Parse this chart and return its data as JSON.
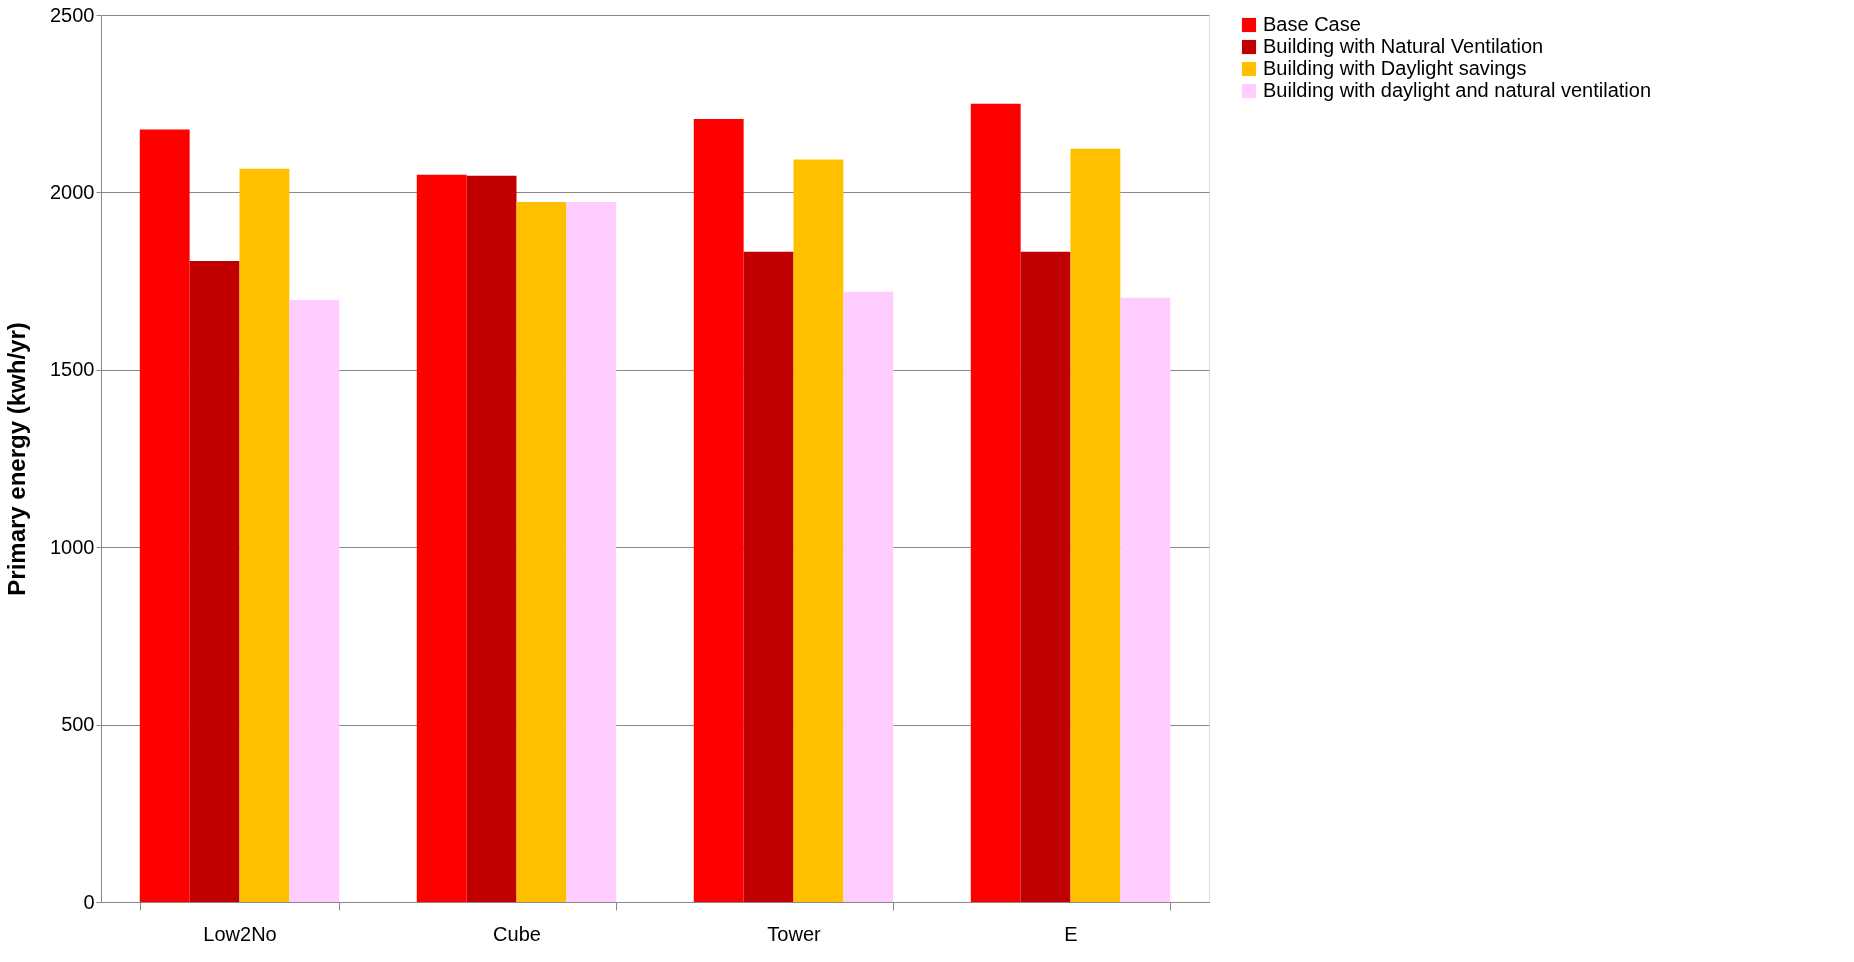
{
  "chart_data": {
    "type": "bar",
    "ylabel": "Primary energy (kwh/yr)",
    "categories": [
      "Low2No",
      "Cube",
      "Tower",
      "E"
    ],
    "series": [
      {
        "name": "Base Case",
        "color": "#ff0000",
        "values": [
          2177,
          2050,
          2207,
          2250
        ]
      },
      {
        "name": "Building with Natural Ventilation",
        "color": "#c00000",
        "values": [
          1807,
          2047,
          1833,
          1833
        ]
      },
      {
        "name": "Building with Daylight savings",
        "color": "#ffc000",
        "values": [
          2067,
          1973,
          2093,
          2123
        ]
      },
      {
        "name": "Building with daylight and natural ventilation",
        "color": "#ffccff",
        "values": [
          1697,
          1973,
          1720,
          1703
        ]
      }
    ],
    "ylim": [
      0,
      2500
    ],
    "yticks": [
      0,
      500,
      1000,
      1500,
      2000,
      2500
    ],
    "grid": "y",
    "legend": "right"
  }
}
